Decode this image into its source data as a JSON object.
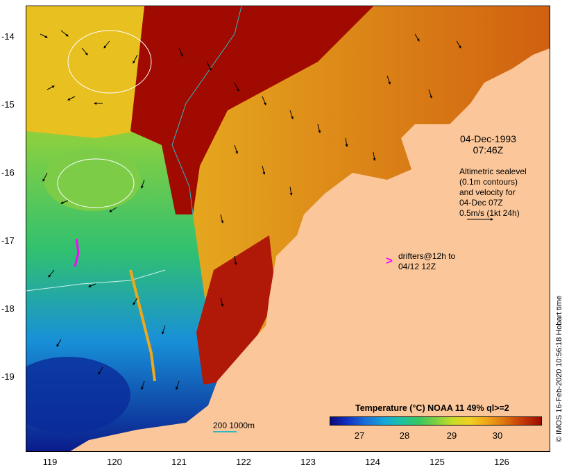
{
  "map": {
    "y_ticks": [
      "-14",
      "-15",
      "-16",
      "-17",
      "-18",
      "-19"
    ],
    "x_ticks": [
      "119",
      "120",
      "121",
      "122",
      "123",
      "124",
      "125",
      "126"
    ],
    "date_line1": "04-Dec-1993",
    "date_line2": "07:46Z",
    "sealevel_lines": [
      "Altimetric sealevel",
      "(0.1m contours)",
      "and velocity for",
      "04-Dec 07Z",
      "0.5m/s (1kt 24h)"
    ],
    "drifter_symbol": ">",
    "drifter_lines": [
      "drifters@12h to",
      "04/12 12Z"
    ],
    "scale_label": "200  1000m",
    "colorbar": {
      "title": "Temperature (°C) NOAA 11 49% ql>=2",
      "ticks": [
        "27",
        "28",
        "29",
        "30"
      ]
    },
    "credit": "© IMOS 16-Feb-2020 10:56:18 Hobart time",
    "colors": {
      "land": "#fbc79a",
      "warm": "#a00a00",
      "cool": "#2070d0",
      "drifter": "#ff00ff",
      "isobath": "#2fb8c0"
    }
  }
}
